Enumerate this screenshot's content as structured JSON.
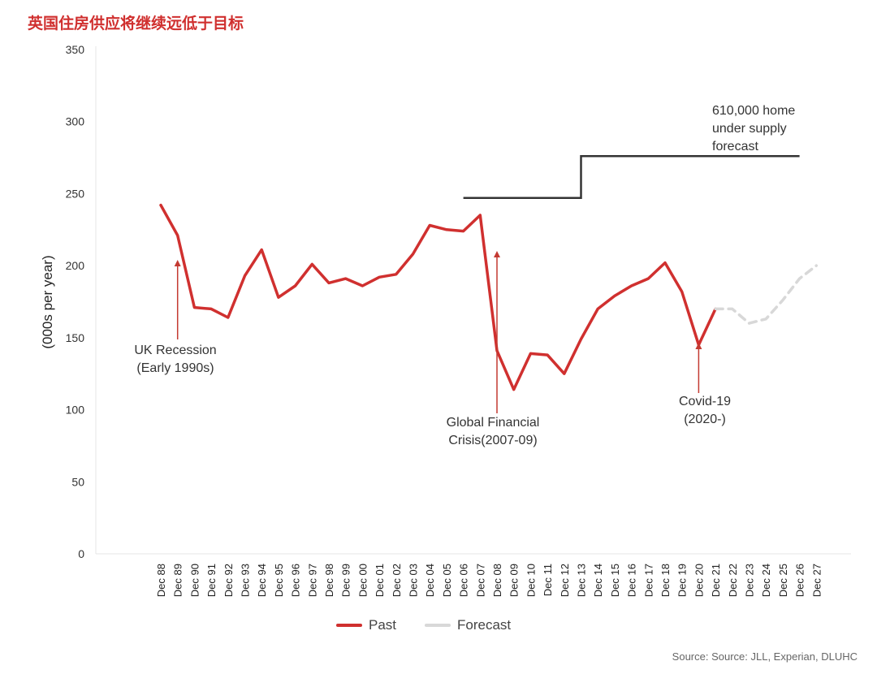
{
  "title": "英国住房供应将继续远低于目标",
  "source": "Source: Source: JLL, Experian, DLUHC",
  "colors": {
    "past": "#d0302f",
    "forecast": "#d8d8d8",
    "target": "#333333",
    "title": "#d0302f"
  },
  "chart_data": {
    "type": "line",
    "ylabel": "(000s per year)",
    "ylim": [
      0,
      350
    ],
    "yticks": [
      "0",
      "50",
      "100",
      "150",
      "200",
      "250",
      "300",
      "350"
    ],
    "grid": false,
    "legend_position": "bottom",
    "categories": [
      "Dec 88",
      "Dec 89",
      "Dec 90",
      "Dec 91",
      "Dec 92",
      "Dec 93",
      "Dec 94",
      "Dec 95",
      "Dec 96",
      "Dec 97",
      "Dec 98",
      "Dec 99",
      "Dec 00",
      "Dec 01",
      "Dec 02",
      "Dec 03",
      "Dec 04",
      "Dec 05",
      "Dec 06",
      "Dec 07",
      "Dec 08",
      "Dec 09",
      "Dec 10",
      "Dec 11",
      "Dec 12",
      "Dec 13",
      "Dec 14",
      "Dec 15",
      "Dec 16",
      "Dec 17",
      "Dec 18",
      "Dec 19",
      "Dec 20",
      "Dec 21",
      "Dec 22",
      "Dec 23",
      "Dec 24",
      "Dec 25",
      "Dec 26",
      "Dec 27"
    ],
    "series": [
      {
        "name": "Past",
        "style": "solid",
        "values": [
          242,
          221,
          171,
          170,
          164,
          193,
          211,
          178,
          186,
          201,
          188,
          191,
          186,
          192,
          194,
          208,
          228,
          225,
          224,
          235,
          141,
          114,
          139,
          138,
          125,
          149,
          170,
          179,
          186,
          191,
          202,
          182,
          145,
          170,
          null,
          null,
          null,
          null,
          null,
          null
        ]
      },
      {
        "name": "Forecast",
        "style": "dashed",
        "values": [
          null,
          null,
          null,
          null,
          null,
          null,
          null,
          null,
          null,
          null,
          null,
          null,
          null,
          null,
          null,
          null,
          null,
          null,
          null,
          null,
          null,
          null,
          null,
          null,
          null,
          null,
          null,
          null,
          null,
          null,
          null,
          null,
          null,
          170,
          170,
          160,
          163,
          176,
          191,
          200
        ]
      }
    ],
    "target_line": {
      "steps": [
        {
          "from": "Dec 06",
          "to": "Dec 13",
          "value": 247
        },
        {
          "from": "Dec 13",
          "to": "Dec 26",
          "value": 276
        }
      ]
    },
    "annotations": [
      {
        "lines": [
          "UK Recession",
          "(Early 1990s)"
        ],
        "category": "Dec 89"
      },
      {
        "lines": [
          "Global Financial",
          "Crisis(2007-09)"
        ],
        "category": "Dec 08"
      },
      {
        "lines": [
          "Covid-19",
          "(2020-)"
        ],
        "category": "Dec 20"
      },
      {
        "lines": [
          "610,000 home",
          "under supply",
          "forecast"
        ],
        "category": "Dec 26"
      }
    ]
  }
}
